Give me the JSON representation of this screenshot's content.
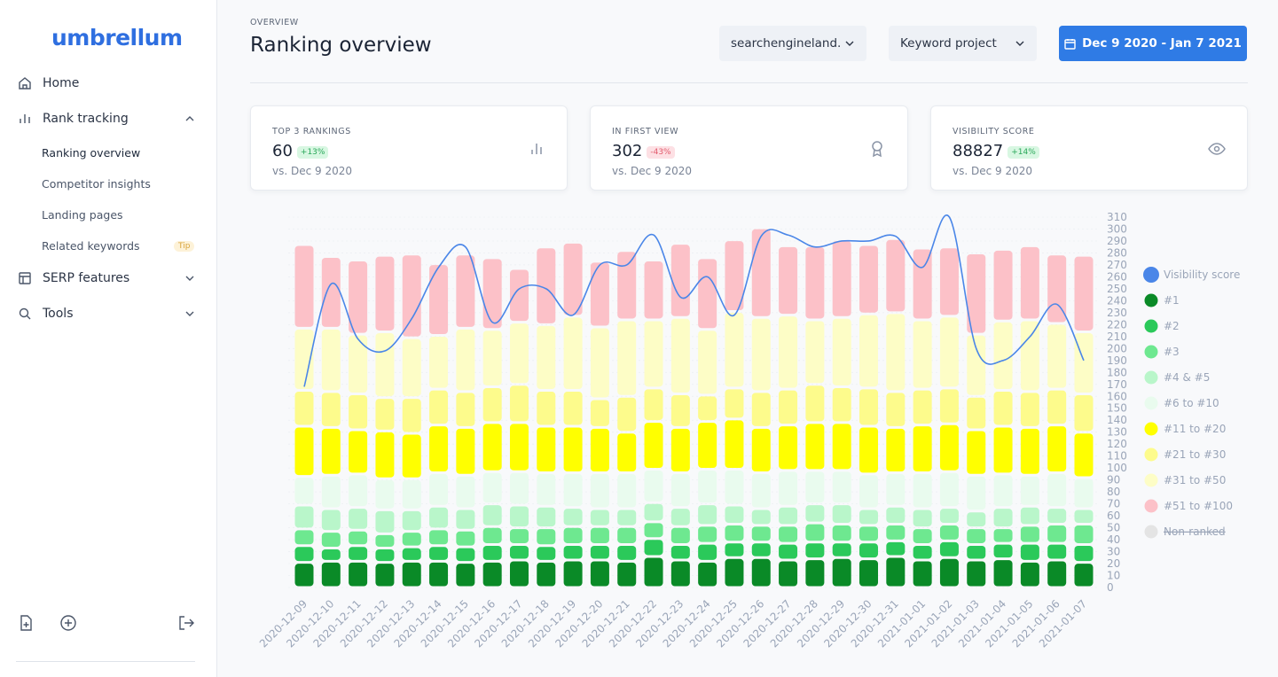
{
  "sidebar": {
    "logo": "umbrellum",
    "nav": [
      "Home",
      "Rank tracking",
      "Ranking overview",
      "Competitor insights",
      "Landing pages",
      "Related keywords",
      "SERP features",
      "Tools"
    ],
    "tip": "Tip"
  },
  "header": {
    "eyebrow": "OVERVIEW",
    "title": "Ranking overview",
    "site": "searchengineland.",
    "project": "Keyword project",
    "dates": "Dec 9 2020 - Jan 7 2021"
  },
  "cards": [
    {
      "label": "TOP 3 RANKINGS",
      "value": 60,
      "change": "+13%",
      "trend": "up",
      "note": "vs. Dec 9 2020"
    },
    {
      "label": "IN FIRST VIEW",
      "value": 302,
      "change": "-43%",
      "trend": "down",
      "note": "vs. Dec 9 2020"
    },
    {
      "label": "VISIBILITY SCORE",
      "value": 88827,
      "change": "+14%",
      "trend": "up",
      "note": "vs. Dec 9 2020"
    }
  ],
  "chart_data": {
    "type": "bar",
    "stacked": true,
    "grid": true,
    "legend": "right",
    "categories": [
      "2020-12-09",
      "2020-12-10",
      "2020-12-11",
      "2020-12-12",
      "2020-12-13",
      "2020-12-14",
      "2020-12-15",
      "2020-12-16",
      "2020-12-17",
      "2020-12-18",
      "2020-12-19",
      "2020-12-20",
      "2020-12-21",
      "2020-12-22",
      "2020-12-23",
      "2020-12-24",
      "2020-12-25",
      "2020-12-26",
      "2020-12-27",
      "2020-12-28",
      "2020-12-29",
      "2020-12-30",
      "2020-12-31",
      "2021-01-01",
      "2021-01-02",
      "2021-01-03",
      "2021-01-04",
      "2021-01-05",
      "2021-01-06",
      "2021-01-07"
    ],
    "ylim": [
      0,
      310
    ],
    "yticks": [
      0,
      10,
      20,
      30,
      40,
      50,
      60,
      70,
      80,
      90,
      100,
      110,
      120,
      130,
      140,
      150,
      160,
      170,
      180,
      190,
      200,
      210,
      220,
      230,
      240,
      250,
      260,
      270,
      280,
      290,
      300,
      310
    ],
    "series": [
      {
        "name": "Visibility score",
        "type": "line",
        "color": "#4a86e8",
        "values": [
          168,
          254,
          208,
          198,
          225,
          268,
          285,
          222,
          250,
          250,
          228,
          270,
          270,
          295,
          243,
          260,
          228,
          294,
          295,
          285,
          290,
          290,
          294,
          268,
          310,
          200,
          190,
          210,
          237,
          190
        ]
      },
      {
        "name": "#1",
        "color": "#0a8a27",
        "values": [
          21,
          22,
          22,
          21,
          22,
          22,
          21,
          22,
          23,
          22,
          23,
          23,
          22,
          26,
          23,
          22,
          25,
          25,
          23,
          24,
          25,
          24,
          26,
          23,
          25,
          23,
          24,
          22,
          23,
          21
        ]
      },
      {
        "name": "#2",
        "color": "#2bc95a",
        "values": [
          14,
          11,
          13,
          12,
          12,
          13,
          13,
          14,
          13,
          13,
          13,
          13,
          14,
          15,
          13,
          15,
          13,
          13,
          14,
          14,
          13,
          14,
          13,
          13,
          14,
          13,
          13,
          15,
          14,
          15
        ]
      },
      {
        "name": "#3",
        "color": "#6ee890",
        "values": [
          14,
          14,
          13,
          12,
          13,
          14,
          14,
          15,
          14,
          15,
          15,
          15,
          15,
          14,
          15,
          15,
          15,
          14,
          15,
          16,
          15,
          14,
          14,
          14,
          14,
          14,
          13,
          15,
          16,
          17
        ]
      },
      {
        "name": "#4 & #5",
        "color": "#b9f6ca",
        "values": [
          20,
          19,
          19,
          20,
          18,
          19,
          18,
          19,
          19,
          18,
          16,
          15,
          15,
          16,
          16,
          18,
          16,
          14,
          16,
          16,
          17,
          14,
          15,
          16,
          14,
          14,
          17,
          16,
          14,
          13
        ]
      },
      {
        "name": "#6 to #10",
        "color": "#e9fbee",
        "values": [
          24,
          28,
          28,
          26,
          26,
          28,
          28,
          27,
          28,
          28,
          29,
          30,
          30,
          28,
          29,
          29,
          30,
          30,
          30,
          28,
          28,
          29,
          28,
          30,
          30,
          30,
          28,
          26,
          29,
          26
        ]
      },
      {
        "name": "#11 to #20",
        "color": "#ffff00",
        "values": [
          42,
          40,
          37,
          40,
          38,
          40,
          40,
          41,
          41,
          39,
          39,
          38,
          34,
          40,
          38,
          40,
          42,
          38,
          38,
          40,
          40,
          40,
          38,
          40,
          40,
          38,
          40,
          40,
          40,
          38
        ]
      },
      {
        "name": "#21 to #30",
        "color": "#fdfb8c",
        "values": [
          30,
          30,
          30,
          28,
          30,
          30,
          30,
          30,
          32,
          30,
          30,
          24,
          30,
          28,
          28,
          22,
          26,
          30,
          30,
          32,
          30,
          32,
          30,
          30,
          30,
          28,
          30,
          30,
          30,
          32
        ]
      },
      {
        "name": "#31 to #50",
        "color": "#fdfdc6",
        "values": [
          52,
          53,
          50,
          55,
          50,
          45,
          53,
          48,
          52,
          55,
          62,
          60,
          64,
          57,
          64,
          55,
          64,
          62,
          62,
          54,
          58,
          62,
          66,
          58,
          60,
          52,
          58,
          60,
          55,
          52
        ]
      },
      {
        "name": "#51 to #100",
        "color": "#fcc1c8",
        "values": [
          70,
          60,
          62,
          64,
          70,
          60,
          62,
          60,
          45,
          65,
          62,
          55,
          58,
          50,
          62,
          60,
          60,
          75,
          58,
          62,
          65,
          58,
          62,
          60,
          58,
          68,
          60,
          62,
          58,
          64
        ]
      },
      {
        "name": "Non-ranked",
        "color": "#e4e4e4",
        "visible": false,
        "values": [
          null,
          null,
          null,
          null,
          null,
          null,
          null,
          null,
          null,
          null,
          null,
          null,
          null,
          null,
          null,
          null,
          null,
          null,
          null,
          null,
          null,
          null,
          null,
          null,
          null,
          null,
          null,
          null,
          null,
          null
        ]
      }
    ]
  }
}
